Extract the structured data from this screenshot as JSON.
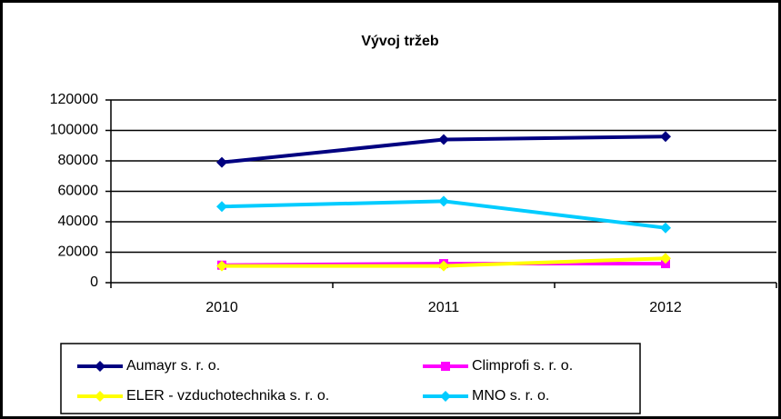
{
  "chart_data": {
    "type": "line",
    "title": "Vývoj tržeb",
    "categories": [
      "2010",
      "2011",
      "2012"
    ],
    "series": [
      {
        "name": "Aumayr s. r. o.",
        "color": "#000080",
        "marker": "diamond",
        "values": [
          79000,
          94000,
          96000
        ]
      },
      {
        "name": "Climprofi s. r. o.",
        "color": "#ff00ff",
        "marker": "square",
        "values": [
          11500,
          12500,
          12500
        ]
      },
      {
        "name": "ELER - vzduchotechnika s. r. o.",
        "color": "#ffff00",
        "marker": "diamond",
        "values": [
          11000,
          11000,
          16000
        ]
      },
      {
        "name": "MNO s. r. o.",
        "color": "#00ccff",
        "marker": "diamond",
        "values": [
          50000,
          53500,
          36000
        ]
      }
    ],
    "ylim": [
      0,
      120000
    ],
    "yticks": [
      0,
      20000,
      40000,
      60000,
      80000,
      100000,
      120000
    ],
    "grid": true,
    "legend": "bottom"
  }
}
